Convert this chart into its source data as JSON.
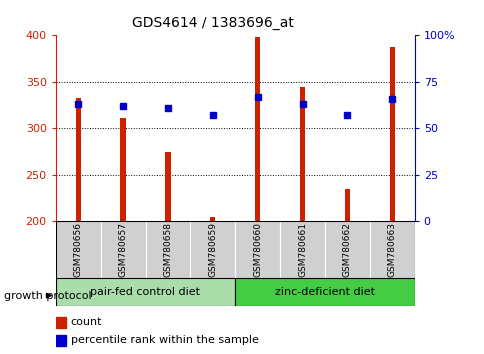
{
  "title": "GDS4614 / 1383696_at",
  "samples": [
    "GSM780656",
    "GSM780657",
    "GSM780658",
    "GSM780659",
    "GSM780660",
    "GSM780661",
    "GSM780662",
    "GSM780663"
  ],
  "counts": [
    333,
    311,
    274,
    205,
    398,
    345,
    235,
    388
  ],
  "percentiles": [
    63,
    62,
    61,
    57,
    67,
    63,
    57,
    66
  ],
  "ylim_left": [
    200,
    400
  ],
  "ylim_right": [
    0,
    100
  ],
  "yticks_left": [
    200,
    250,
    300,
    350,
    400
  ],
  "yticks_right": [
    0,
    25,
    50,
    75,
    100
  ],
  "yticklabels_right": [
    "0",
    "25",
    "50",
    "75",
    "100%"
  ],
  "bar_color": "#cc2200",
  "dot_color": "#0000cc",
  "bar_width": 0.12,
  "groups": [
    {
      "label": "pair-fed control diet",
      "indices": [
        0,
        1,
        2,
        3
      ],
      "color": "#aaddaa"
    },
    {
      "label": "zinc-deficient diet",
      "indices": [
        4,
        5,
        6,
        7
      ],
      "color": "#44cc44"
    }
  ],
  "group_label": "growth protocol",
  "legend_count_label": "count",
  "legend_pct_label": "percentile rank within the sample",
  "title_color": "#000000",
  "left_axis_color": "#cc2200",
  "right_axis_color": "#0000cc",
  "sample_box_color": "#d0d0d0",
  "grid_ticks": [
    250,
    300,
    350
  ]
}
